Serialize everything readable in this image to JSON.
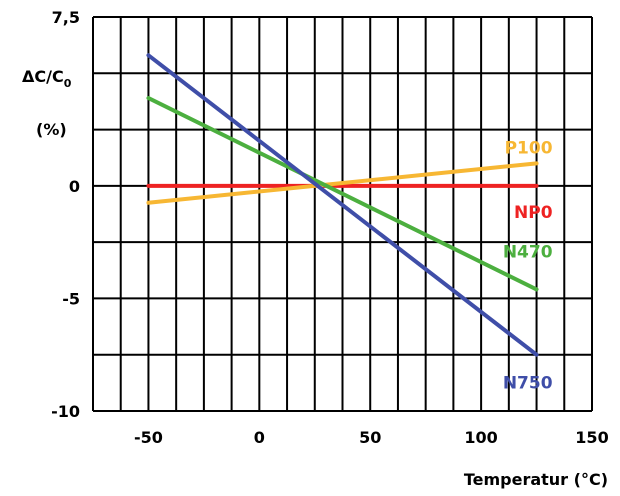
{
  "chart_data": {
    "type": "line",
    "ylabel": "ΔC/C",
    "ylabel_subscript": "0",
    "ylabel_unit": "(%)",
    "xlabel": "Temperatur (°C)",
    "xlim": [
      -75,
      150
    ],
    "ylim": [
      -10,
      7.5
    ],
    "x_ticks": [
      -50,
      0,
      50,
      100,
      150
    ],
    "x_tick_labels": [
      "-50",
      "0",
      "50",
      "100",
      "150"
    ],
    "y_ticks": [
      -10,
      -5,
      0,
      7.5
    ],
    "y_tick_labels": [
      "-10",
      "-5",
      "0",
      "7,5"
    ],
    "grid": true,
    "series": [
      {
        "name": "NP0",
        "color": "#ee2222",
        "x": [
          -50,
          125
        ],
        "y": [
          0,
          0
        ]
      },
      {
        "name": "P100",
        "color": "#f7b733",
        "x": [
          -50,
          125
        ],
        "y": [
          -0.75,
          1.0
        ]
      },
      {
        "name": "N470",
        "color": "#4caf3f",
        "x": [
          -50,
          125
        ],
        "y": [
          3.9,
          -4.6
        ]
      },
      {
        "name": "N750",
        "color": "#3f4ea8",
        "x": [
          -50,
          125
        ],
        "y": [
          5.8,
          -7.5
        ]
      }
    ]
  }
}
